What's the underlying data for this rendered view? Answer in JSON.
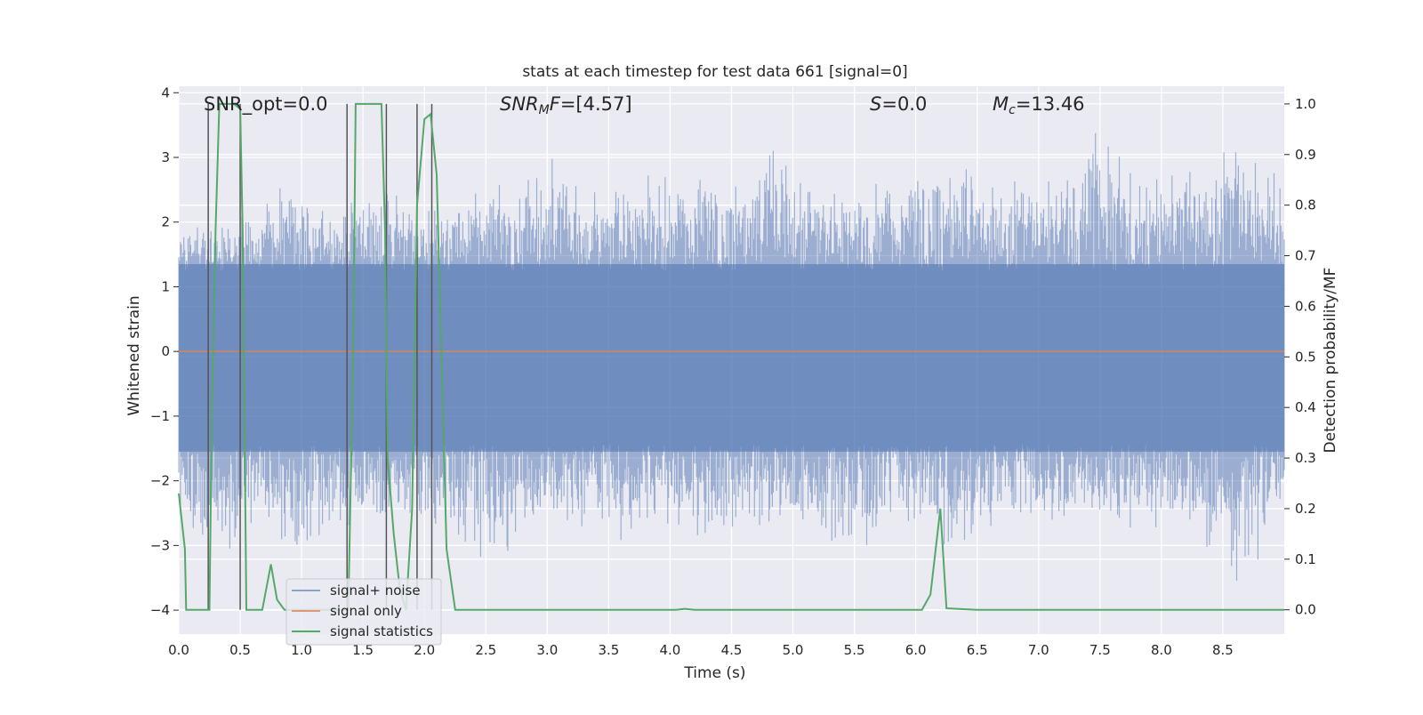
{
  "chart_data": {
    "type": "line",
    "title": "stats at each timestep for test data 661 [signal=0]",
    "xlabel": "Time (s)",
    "ylabel": "Whitened strain",
    "ylabel_right": "Detection probability/MF",
    "xlim": [
      0.0,
      9.0
    ],
    "ylim": [
      -4.37,
      4.1
    ],
    "ylim_right": [
      -0.048,
      1.035
    ],
    "x_ticks": [
      0.0,
      0.5,
      1.0,
      1.5,
      2.0,
      2.5,
      3.0,
      3.5,
      4.0,
      4.5,
      5.0,
      5.5,
      6.0,
      6.5,
      7.0,
      7.5,
      8.0,
      8.5
    ],
    "x_tick_labels": [
      "0.0",
      "0.5",
      "1.0",
      "1.5",
      "2.0",
      "2.5",
      "3.0",
      "3.5",
      "4.0",
      "4.5",
      "5.0",
      "5.5",
      "6.0",
      "6.5",
      "7.0",
      "7.5",
      "8.0",
      "8.5"
    ],
    "y_ticks": [
      4,
      3,
      2,
      1,
      0,
      -1,
      -2,
      -3,
      -4
    ],
    "y_tick_labels": [
      "4",
      "3",
      "2",
      "1",
      "0",
      "−1",
      "−2",
      "−3",
      "−4"
    ],
    "y_ticks_right": [
      1.0,
      0.9,
      0.8,
      0.7,
      0.6,
      0.5,
      0.4,
      0.3,
      0.2,
      0.1,
      0.0
    ],
    "y_tick_labels_right": [
      "1.0",
      "0.9",
      "0.8",
      "0.7",
      "0.6",
      "0.5",
      "0.4",
      "0.3",
      "0.2",
      "0.1",
      "0.0"
    ],
    "grid": true,
    "legend_position": "bottom-left",
    "colors": {
      "background": "#eaeaf2",
      "grid": "#ffffff",
      "noise": "#4c72b0",
      "signal": "#dd8452",
      "stats": "#55a868",
      "markers": "#555555"
    },
    "annotations": {
      "snr_opt": "SNR_opt=0.0",
      "snr_mf": "=[4.57]",
      "s": "=0.0",
      "mc": "=13.46"
    },
    "series": [
      {
        "name": "signal+ noise",
        "note_envelope": true,
        "envelope_upper": [
          [
            0.0,
            1.8
          ],
          [
            0.3,
            2.3
          ],
          [
            0.6,
            2.0
          ],
          [
            0.8,
            2.8
          ],
          [
            1.1,
            2.2
          ],
          [
            1.5,
            2.6
          ],
          [
            1.9,
            2.5
          ],
          [
            2.2,
            2.3
          ],
          [
            2.5,
            2.8
          ],
          [
            2.8,
            2.6
          ],
          [
            3.05,
            3.4
          ],
          [
            3.3,
            2.4
          ],
          [
            3.5,
            2.6
          ],
          [
            3.75,
            3.1
          ],
          [
            4.0,
            2.8
          ],
          [
            4.5,
            2.9
          ],
          [
            4.9,
            3.4
          ],
          [
            5.2,
            2.7
          ],
          [
            5.5,
            2.9
          ],
          [
            5.9,
            2.6
          ],
          [
            6.3,
            3.35
          ],
          [
            6.6,
            2.6
          ],
          [
            6.9,
            2.9
          ],
          [
            7.2,
            3.0
          ],
          [
            7.45,
            3.75
          ],
          [
            7.8,
            2.8
          ],
          [
            8.05,
            3.0
          ],
          [
            8.4,
            3.1
          ],
          [
            8.55,
            3.6
          ],
          [
            8.75,
            3.0
          ],
          [
            9.0,
            2.9
          ]
        ],
        "envelope_lower": [
          [
            0.0,
            -2.6
          ],
          [
            0.3,
            -3.5
          ],
          [
            0.6,
            -3.0
          ],
          [
            0.9,
            -3.2
          ],
          [
            1.3,
            -3.0
          ],
          [
            1.6,
            -2.8
          ],
          [
            2.0,
            -2.7
          ],
          [
            2.3,
            -3.0
          ],
          [
            2.6,
            -3.4
          ],
          [
            2.9,
            -2.7
          ],
          [
            3.3,
            -2.8
          ],
          [
            3.65,
            -3.0
          ],
          [
            4.0,
            -2.9
          ],
          [
            4.5,
            -3.2
          ],
          [
            4.95,
            -2.8
          ],
          [
            5.5,
            -3.3
          ],
          [
            5.9,
            -2.7
          ],
          [
            6.3,
            -3.2
          ],
          [
            6.7,
            -2.7
          ],
          [
            7.1,
            -2.9
          ],
          [
            7.6,
            -2.8
          ],
          [
            8.0,
            -2.9
          ],
          [
            8.3,
            -3.0
          ],
          [
            8.55,
            -3.4
          ],
          [
            8.75,
            -4.0
          ],
          [
            8.85,
            -3.3
          ],
          [
            9.0,
            -2.3
          ]
        ]
      },
      {
        "name": "signal only",
        "points": [
          [
            0.0,
            0.0
          ],
          [
            9.0,
            0.0
          ]
        ]
      },
      {
        "name": "signal statistics",
        "axis": "right",
        "points": [
          [
            0.0,
            0.23
          ],
          [
            0.05,
            0.12
          ],
          [
            0.06,
            0.0
          ],
          [
            0.25,
            0.0
          ],
          [
            0.27,
            0.4
          ],
          [
            0.3,
            0.75
          ],
          [
            0.33,
            1.0
          ],
          [
            0.4,
            1.0
          ],
          [
            0.45,
            1.0
          ],
          [
            0.5,
            0.99
          ],
          [
            0.52,
            0.75
          ],
          [
            0.55,
            0.0
          ],
          [
            0.68,
            0.0
          ],
          [
            0.75,
            0.09
          ],
          [
            0.8,
            0.02
          ],
          [
            0.86,
            0.0
          ],
          [
            1.38,
            0.0
          ],
          [
            1.42,
            0.5
          ],
          [
            1.44,
            1.0
          ],
          [
            1.55,
            1.0
          ],
          [
            1.65,
            1.0
          ],
          [
            1.68,
            0.75
          ],
          [
            1.7,
            0.3
          ],
          [
            1.75,
            0.15
          ],
          [
            1.8,
            0.04
          ],
          [
            1.85,
            0.0
          ],
          [
            1.9,
            0.2
          ],
          [
            1.94,
            0.8
          ],
          [
            2.0,
            0.97
          ],
          [
            2.05,
            0.98
          ],
          [
            2.1,
            0.86
          ],
          [
            2.18,
            0.12
          ],
          [
            2.25,
            0.0
          ],
          [
            4.05,
            0.0
          ],
          [
            4.12,
            0.002
          ],
          [
            4.2,
            0.0
          ],
          [
            6.05,
            0.0
          ],
          [
            6.12,
            0.03
          ],
          [
            6.2,
            0.2
          ],
          [
            6.25,
            0.003
          ],
          [
            6.5,
            0.0
          ],
          [
            9.0,
            0.0
          ]
        ]
      }
    ],
    "marker_lines": [
      0.24,
      0.5,
      1.37,
      1.69,
      1.94,
      2.06
    ]
  }
}
